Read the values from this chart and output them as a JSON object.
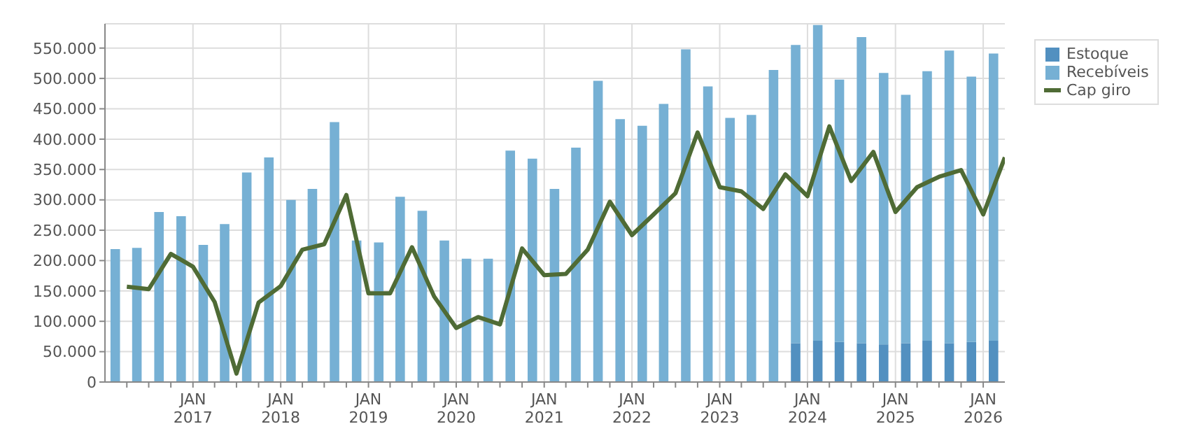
{
  "chart_data": {
    "type": "bar",
    "stacked": true,
    "legend": "right",
    "grid": true,
    "x": [
      "2016-02-15",
      "2016-05-15",
      "2016-08-15",
      "2016-11-15",
      "2017-02-15",
      "2017-05-15",
      "2017-08-15",
      "2017-11-15",
      "2018-02-15",
      "2018-05-15",
      "2018-08-15",
      "2018-11-15",
      "2019-02-15",
      "2019-05-15",
      "2019-08-15",
      "2019-11-15",
      "2020-02-15",
      "2020-05-15",
      "2020-08-15",
      "2020-11-15",
      "2021-02-15",
      "2021-05-15",
      "2021-08-15",
      "2021-11-15",
      "2022-02-15",
      "2022-05-15",
      "2022-08-15",
      "2022-11-15",
      "2023-02-15",
      "2023-05-15",
      "2023-08-15",
      "2023-11-15",
      "2024-02-15",
      "2024-05-15",
      "2024-08-15",
      "2024-11-15",
      "2025-02-15",
      "2025-05-15",
      "2025-08-15",
      "2025-11-15",
      "2026-02-15"
    ],
    "series": [
      {
        "name": "Estoque",
        "color": "#5290c0",
        "values": [
          null,
          null,
          null,
          null,
          null,
          null,
          null,
          null,
          null,
          null,
          null,
          null,
          null,
          null,
          null,
          null,
          null,
          null,
          null,
          null,
          null,
          null,
          null,
          null,
          null,
          null,
          null,
          null,
          null,
          null,
          null,
          64000,
          68000,
          66000,
          64000,
          62000,
          64000,
          68000,
          64000,
          66000,
          68000
        ]
      },
      {
        "name": "Recebíveis",
        "color": "#76b0d4",
        "values": [
          219000,
          221000,
          280000,
          273000,
          226000,
          260000,
          345000,
          370000,
          300000,
          318000,
          428000,
          233000,
          230000,
          305000,
          282000,
          233000,
          203000,
          203000,
          381000,
          368000,
          318000,
          386000,
          496000,
          433000,
          422000,
          458000,
          548000,
          487000,
          435000,
          440000,
          514000,
          491000,
          520000,
          432000,
          504000,
          447000,
          409000,
          444000,
          482000,
          437000,
          473000
        ]
      },
      {
        "name": "Cap giro",
        "type": "line",
        "color": "#4f6b35",
        "x": [
          "2016-04-01",
          "2016-07-01",
          "2016-10-01",
          "2017-01-01",
          "2017-04-01",
          "2017-07-01",
          "2017-10-01",
          "2018-01-01",
          "2018-04-01",
          "2018-07-01",
          "2018-10-01",
          "2019-01-01",
          "2019-04-01",
          "2019-07-01",
          "2019-10-01",
          "2020-01-01",
          "2020-04-01",
          "2020-07-01",
          "2020-10-01",
          "2021-01-01",
          "2021-04-01",
          "2021-07-01",
          "2021-10-01",
          "2022-01-01",
          "2022-04-01",
          "2022-07-01",
          "2022-10-01",
          "2023-01-01",
          "2023-04-01",
          "2023-07-01",
          "2023-10-01",
          "2024-01-01",
          "2024-04-01",
          "2024-07-01",
          "2024-10-01",
          "2025-01-01",
          "2025-04-01",
          "2025-07-01",
          "2025-10-01",
          "2026-01-01",
          "2026-04-01"
        ],
        "values": [
          157000,
          153000,
          211000,
          190000,
          132000,
          14000,
          131000,
          158000,
          218000,
          227000,
          308000,
          146000,
          146000,
          222000,
          141000,
          89000,
          107000,
          95000,
          220000,
          176000,
          178000,
          218000,
          297000,
          242000,
          276000,
          311000,
          411000,
          321000,
          314000,
          285000,
          342000,
          306000,
          421000,
          331000,
          379000,
          280000,
          321000,
          338000,
          349000,
          276000,
          370000
        ]
      }
    ],
    "xlim": [
      "2016-01-01",
      "2026-04-01"
    ],
    "xticks": [
      {
        "value": "2016-04-01",
        "label": null
      },
      {
        "value": "2016-07-01",
        "label": null
      },
      {
        "value": "2016-10-01",
        "label": null
      },
      {
        "value": "2017-01-01",
        "label": "JAN\n2017"
      },
      {
        "value": "2017-04-01",
        "label": null
      },
      {
        "value": "2017-07-01",
        "label": null
      },
      {
        "value": "2017-10-01",
        "label": null
      },
      {
        "value": "2018-01-01",
        "label": "JAN\n2018"
      },
      {
        "value": "2018-04-01",
        "label": null
      },
      {
        "value": "2018-07-01",
        "label": null
      },
      {
        "value": "2018-10-01",
        "label": null
      },
      {
        "value": "2019-01-01",
        "label": "JAN\n2019"
      },
      {
        "value": "2019-04-01",
        "label": null
      },
      {
        "value": "2019-07-01",
        "label": null
      },
      {
        "value": "2019-10-01",
        "label": null
      },
      {
        "value": "2020-01-01",
        "label": "JAN\n2020"
      },
      {
        "value": "2020-04-01",
        "label": null
      },
      {
        "value": "2020-07-01",
        "label": null
      },
      {
        "value": "2020-10-01",
        "label": null
      },
      {
        "value": "2021-01-01",
        "label": "JAN\n2021"
      },
      {
        "value": "2021-04-01",
        "label": null
      },
      {
        "value": "2021-07-01",
        "label": null
      },
      {
        "value": "2021-10-01",
        "label": null
      },
      {
        "value": "2022-01-01",
        "label": "JAN\n2022"
      },
      {
        "value": "2022-04-01",
        "label": null
      },
      {
        "value": "2022-07-01",
        "label": null
      },
      {
        "value": "2022-10-01",
        "label": null
      },
      {
        "value": "2023-01-01",
        "label": "JAN\n2023"
      },
      {
        "value": "2023-04-01",
        "label": null
      },
      {
        "value": "2023-07-01",
        "label": null
      },
      {
        "value": "2023-10-01",
        "label": null
      },
      {
        "value": "2024-01-01",
        "label": "JAN\n2024"
      },
      {
        "value": "2024-04-01",
        "label": null
      },
      {
        "value": "2024-07-01",
        "label": null
      },
      {
        "value": "2024-10-01",
        "label": null
      },
      {
        "value": "2025-01-01",
        "label": "JAN\n2025"
      },
      {
        "value": "2025-04-01",
        "label": null
      },
      {
        "value": "2025-07-01",
        "label": null
      },
      {
        "value": "2025-10-01",
        "label": null
      },
      {
        "value": "2026-01-01",
        "label": "JAN\n2026"
      }
    ],
    "ylim": [
      0,
      590000
    ],
    "yticks": [
      {
        "value": 0,
        "label": "0"
      },
      {
        "value": 50000,
        "label": "50.000"
      },
      {
        "value": 100000,
        "label": "100.000"
      },
      {
        "value": 150000,
        "label": "150.000"
      },
      {
        "value": 200000,
        "label": "200.000"
      },
      {
        "value": 250000,
        "label": "250.000"
      },
      {
        "value": 300000,
        "label": "300.000"
      },
      {
        "value": 350000,
        "label": "350.000"
      },
      {
        "value": 400000,
        "label": "400.000"
      },
      {
        "value": 450000,
        "label": "450.000"
      },
      {
        "value": 500000,
        "label": "500.000"
      },
      {
        "value": 550000,
        "label": "550.000"
      }
    ],
    "line_style": "solid",
    "marker": "none"
  }
}
